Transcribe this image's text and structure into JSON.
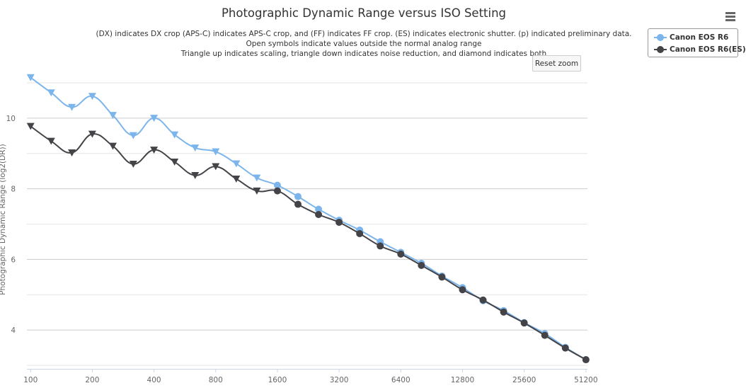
{
  "chart_data": {
    "type": "line",
    "title": "Photographic Dynamic Range versus ISO Setting",
    "subtitle": [
      "(DX) indicates DX crop (APS-C) indicates APS-C crop, and (FF) indicates FF crop. (ES) indicates electronic shutter. (p) indicated preliminary data.",
      "Open symbols indicate values outside the normal analog range",
      "Triangle up indicates scaling, triangle down indicates noise reduction, and diamond indicates both"
    ],
    "xlabel": "",
    "ylabel": "Photographic Dynamic Range (log2(DR))",
    "x_scale": "log2",
    "xlim": [
      100,
      51200
    ],
    "ylim": [
      2.9,
      11.3
    ],
    "x_ticks": [
      100,
      200,
      400,
      800,
      1600,
      3200,
      6400,
      12800,
      25600,
      51200
    ],
    "y_ticks": [
      4,
      6,
      8,
      10
    ],
    "grid": true,
    "legend": "top-right",
    "series": [
      {
        "name": "Canon EOS R6",
        "color": "#7cb5ec",
        "points": [
          {
            "x": 100,
            "y": 11.15,
            "marker": "triangle-down"
          },
          {
            "x": 126,
            "y": 10.72,
            "marker": "triangle-down"
          },
          {
            "x": 159,
            "y": 10.31,
            "marker": "triangle-down"
          },
          {
            "x": 200,
            "y": 10.62,
            "marker": "triangle-down"
          },
          {
            "x": 252,
            "y": 10.08,
            "marker": "triangle-down"
          },
          {
            "x": 317,
            "y": 9.51,
            "marker": "triangle-down"
          },
          {
            "x": 400,
            "y": 10.0,
            "marker": "triangle-down"
          },
          {
            "x": 504,
            "y": 9.53,
            "marker": "triangle-down"
          },
          {
            "x": 635,
            "y": 9.16,
            "marker": "triangle-down"
          },
          {
            "x": 800,
            "y": 9.05,
            "marker": "triangle-down"
          },
          {
            "x": 1008,
            "y": 8.71,
            "marker": "triangle-down"
          },
          {
            "x": 1270,
            "y": 8.31,
            "marker": "triangle-down"
          },
          {
            "x": 1600,
            "y": 8.1,
            "marker": "circle"
          },
          {
            "x": 2016,
            "y": 7.78,
            "marker": "circle"
          },
          {
            "x": 2540,
            "y": 7.42,
            "marker": "circle"
          },
          {
            "x": 3200,
            "y": 7.11,
            "marker": "circle"
          },
          {
            "x": 4032,
            "y": 6.83,
            "marker": "circle"
          },
          {
            "x": 5080,
            "y": 6.5,
            "marker": "circle"
          },
          {
            "x": 6400,
            "y": 6.2,
            "marker": "circle"
          },
          {
            "x": 8064,
            "y": 5.89,
            "marker": "circle"
          },
          {
            "x": 10159,
            "y": 5.53,
            "marker": "circle"
          },
          {
            "x": 12800,
            "y": 5.2,
            "marker": "circle"
          },
          {
            "x": 16127,
            "y": 4.83,
            "marker": "circle"
          },
          {
            "x": 20319,
            "y": 4.55,
            "marker": "circle"
          },
          {
            "x": 25600,
            "y": 4.21,
            "marker": "circle"
          },
          {
            "x": 32254,
            "y": 3.9,
            "marker": "circle"
          },
          {
            "x": 40637,
            "y": 3.51,
            "marker": "circle"
          },
          {
            "x": 51200,
            "y": 3.16,
            "marker": "circle"
          }
        ]
      },
      {
        "name": "Canon EOS R6(ES)",
        "color": "#434348",
        "points": [
          {
            "x": 100,
            "y": 9.77,
            "marker": "triangle-down"
          },
          {
            "x": 126,
            "y": 9.35,
            "marker": "triangle-down"
          },
          {
            "x": 159,
            "y": 9.02,
            "marker": "triangle-down"
          },
          {
            "x": 200,
            "y": 9.55,
            "marker": "triangle-down"
          },
          {
            "x": 252,
            "y": 9.21,
            "marker": "triangle-down"
          },
          {
            "x": 317,
            "y": 8.7,
            "marker": "triangle-down"
          },
          {
            "x": 400,
            "y": 9.1,
            "marker": "triangle-down"
          },
          {
            "x": 504,
            "y": 8.76,
            "marker": "triangle-down"
          },
          {
            "x": 635,
            "y": 8.38,
            "marker": "triangle-down"
          },
          {
            "x": 800,
            "y": 8.63,
            "marker": "triangle-down"
          },
          {
            "x": 1008,
            "y": 8.28,
            "marker": "triangle-down"
          },
          {
            "x": 1270,
            "y": 7.94,
            "marker": "triangle-down"
          },
          {
            "x": 1600,
            "y": 7.94,
            "marker": "circle"
          },
          {
            "x": 2016,
            "y": 7.56,
            "marker": "circle"
          },
          {
            "x": 2540,
            "y": 7.27,
            "marker": "circle"
          },
          {
            "x": 3200,
            "y": 7.05,
            "marker": "circle"
          },
          {
            "x": 4032,
            "y": 6.73,
            "marker": "circle"
          },
          {
            "x": 5080,
            "y": 6.38,
            "marker": "circle"
          },
          {
            "x": 6400,
            "y": 6.15,
            "marker": "circle"
          },
          {
            "x": 8064,
            "y": 5.83,
            "marker": "circle"
          },
          {
            "x": 10159,
            "y": 5.5,
            "marker": "circle"
          },
          {
            "x": 12800,
            "y": 5.14,
            "marker": "circle"
          },
          {
            "x": 16127,
            "y": 4.85,
            "marker": "circle"
          },
          {
            "x": 20319,
            "y": 4.51,
            "marker": "circle"
          },
          {
            "x": 25600,
            "y": 4.2,
            "marker": "circle"
          },
          {
            "x": 32254,
            "y": 3.85,
            "marker": "circle"
          },
          {
            "x": 40637,
            "y": 3.49,
            "marker": "circle"
          },
          {
            "x": 51200,
            "y": 3.16,
            "marker": "circle"
          }
        ]
      }
    ]
  },
  "ui": {
    "reset_zoom_label": "Reset zoom",
    "menu_icon": "hamburger-menu-icon"
  }
}
